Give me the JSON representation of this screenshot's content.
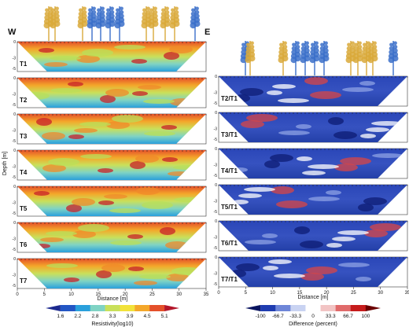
{
  "orientation": {
    "west": "W",
    "east": "E"
  },
  "left_panel": {
    "rows": [
      "T1",
      "T2",
      "T3",
      "T4",
      "T5",
      "T6",
      "T7"
    ],
    "depth_ticks": [
      "0",
      "-3",
      "-5"
    ],
    "x_ticks": [
      "0",
      "5",
      "10",
      "15",
      "20",
      "25",
      "30",
      "35"
    ],
    "x_label": "Distance [m]",
    "y_label": "Depth [m]",
    "colorbar": {
      "ticks": [
        "1.6",
        "2.2",
        "2.8",
        "3.3",
        "3.9",
        "4.5",
        "5.1"
      ],
      "label": "Resistivity(log10)",
      "colors": [
        "#1d2a8f",
        "#2356c4",
        "#2aa0dc",
        "#7fd3c4",
        "#c9e05a",
        "#f2e23a",
        "#f4a72a",
        "#e4502a",
        "#b3162a"
      ]
    }
  },
  "right_panel": {
    "rows": [
      "T2/T1",
      "T3/T1",
      "T4/T1",
      "T5/T1",
      "T6/T1",
      "T7/T1"
    ],
    "depth_ticks": [
      "0",
      "-3",
      "-5"
    ],
    "x_ticks": [
      "0",
      "5",
      "10",
      "15",
      "20",
      "25",
      "30",
      "35"
    ],
    "x_label": "Distance [m]",
    "colorbar": {
      "ticks": [
        "-100",
        "-66.7",
        "-33.3",
        "0",
        "33.3",
        "66.7",
        "100"
      ],
      "label": "Difference (percent)",
      "colors": [
        "#0a1560",
        "#1f3cb0",
        "#6e86d8",
        "#c9d3f2",
        "#ffffff",
        "#f2c4c4",
        "#e06a6a",
        "#c61c1c",
        "#6b0000"
      ]
    }
  },
  "tree_colors": {
    "gold": "#d9a93a",
    "blue": "#3a6ec9"
  }
}
